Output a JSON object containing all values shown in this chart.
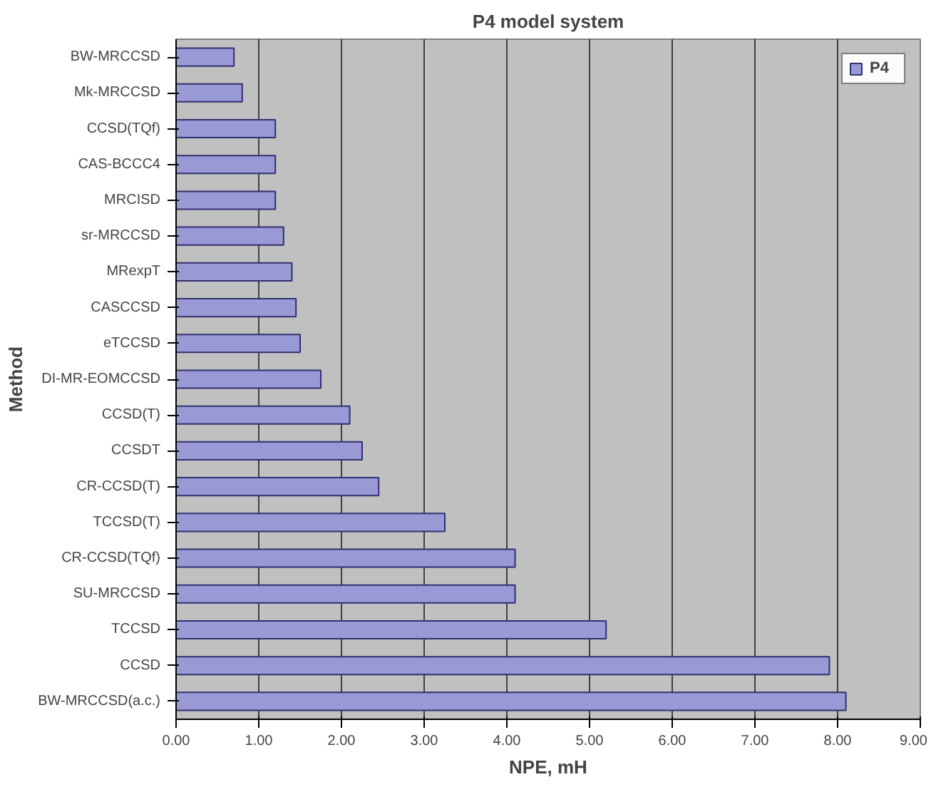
{
  "chart_data": {
    "type": "bar",
    "orientation": "horizontal",
    "title": "P4 model system",
    "xlabel": "NPE, mH",
    "ylabel": "Method",
    "categories": [
      "BW-MRCCSD",
      "Mk-MRCCSD",
      "CCSD(TQf)",
      "CAS-BCCC4",
      "MRCISD",
      "sr-MRCCSD",
      "MRexpT",
      "CASCCSD",
      "eTCCSD",
      "DI-MR-EOMCCSD",
      "CCSD(T)",
      "CCSDT",
      "CR-CCSD(T)",
      "TCCSD(T)",
      "CR-CCSD(TQf)",
      "SU-MRCCSD",
      "TCCSD",
      "CCSD",
      "BW-MRCCSD(a.c.)"
    ],
    "series": [
      {
        "name": "P4",
        "color": "#9999d6",
        "values": [
          0.7,
          0.8,
          1.2,
          1.2,
          1.2,
          1.3,
          1.4,
          1.45,
          1.5,
          1.75,
          2.1,
          2.25,
          2.45,
          3.25,
          4.1,
          4.1,
          5.2,
          7.9,
          8.1
        ]
      }
    ],
    "xlim": [
      0,
      9
    ],
    "xticks": [
      {
        "value": 0,
        "label": "0.00"
      },
      {
        "value": 1,
        "label": "1.00"
      },
      {
        "value": 2,
        "label": "2.00"
      },
      {
        "value": 3,
        "label": "3.00"
      },
      {
        "value": 4,
        "label": "4.00"
      },
      {
        "value": 5,
        "label": "5.00"
      },
      {
        "value": 6,
        "label": "6.00"
      },
      {
        "value": 7,
        "label": "7.00"
      },
      {
        "value": 8,
        "label": "8.00"
      },
      {
        "value": 9,
        "label": "9.00"
      }
    ],
    "grid": "x",
    "legend": "top right"
  }
}
